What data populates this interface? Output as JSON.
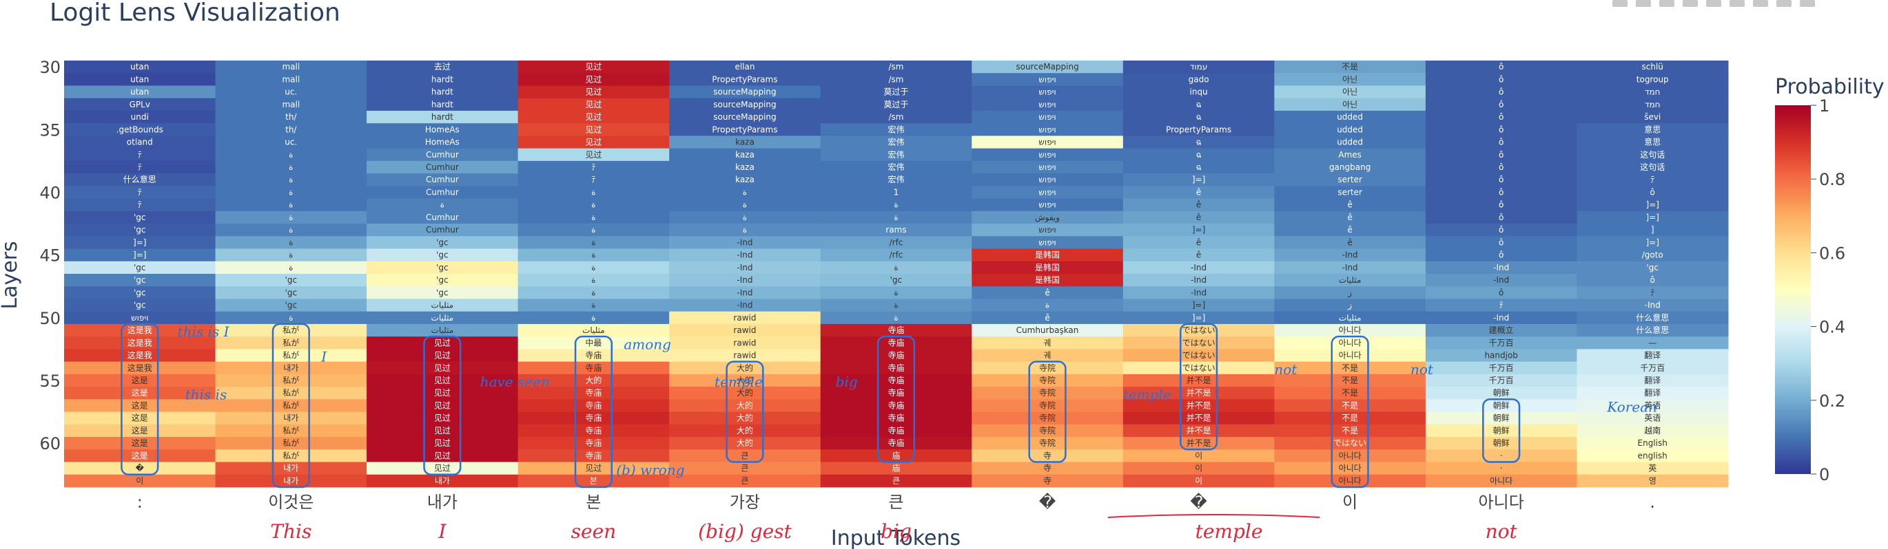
{
  "chart_data": {
    "type": "heatmap",
    "title": "Logit Lens Visualization",
    "xlabel": "Input Tokens",
    "ylabel": "Layers",
    "colorbar_title": "Probability",
    "colorbar_ticks": [
      "0",
      "0.2",
      "0.4",
      "0.6",
      "0.8",
      "1"
    ],
    "colorscale": "RdYlBu_r",
    "zmin": 0,
    "zmax": 1,
    "y_ticks": [
      "30",
      "35",
      "40",
      "45",
      "50",
      "55",
      "60"
    ],
    "layers": [
      30,
      31,
      32,
      33,
      34,
      35,
      36,
      37,
      38,
      39,
      40,
      41,
      42,
      43,
      44,
      45,
      46,
      47,
      48,
      49,
      50,
      51,
      52,
      53,
      54,
      55,
      56,
      57,
      58,
      59,
      60,
      61,
      62,
      63
    ],
    "tokens": [
      ":",
      "이것은",
      "내가",
      "본",
      "가장",
      "큰",
      "�",
      "�",
      "이",
      "아니다",
      "."
    ],
    "columns": [
      {
        "labels": [
          "utan",
          "utan",
          "utan",
          "GPLv",
          "undi",
          ".getBounds",
          "otland",
          "ﾃ",
          "ﾃ",
          "什么意思",
          "ﾃ",
          "ﾃ",
          "'gc",
          "'gc",
          "]=]",
          "]=]",
          "'gc",
          "'gc",
          "'gc",
          "'gc",
          "ויפוש",
          "这是我",
          "这是我",
          "这是我",
          "这是我",
          "这是",
          "这是",
          "这是",
          "这是",
          "这是",
          "这是",
          "这是",
          "�",
          "이"
        ],
        "probs": [
          0.04,
          0.03,
          0.15,
          0.05,
          0.04,
          0.06,
          0.05,
          0.05,
          0.04,
          0.06,
          0.08,
          0.07,
          0.05,
          0.06,
          0.07,
          0.1,
          0.35,
          0.12,
          0.08,
          0.07,
          0.06,
          0.84,
          0.86,
          0.88,
          0.74,
          0.8,
          0.82,
          0.72,
          0.6,
          0.64,
          0.78,
          0.82,
          0.58,
          0.78
        ]
      },
      {
        "labels": [
          "mall",
          "mall",
          "uc.",
          "mall",
          "th/",
          "th/",
          "uc.",
          "ة",
          "ة",
          "ة",
          "ة",
          "ة",
          "ة",
          "ة",
          "ة",
          "ة",
          "ة",
          "'gc",
          "'gc",
          "'gc",
          "ة",
          "私が",
          "私が",
          "私が",
          "내가",
          "私が",
          "私が",
          "私が",
          "내가",
          "私が",
          "私が",
          "私が",
          "내가",
          "내가"
        ],
        "probs": [
          0.1,
          0.1,
          0.1,
          0.1,
          0.1,
          0.1,
          0.1,
          0.1,
          0.1,
          0.1,
          0.1,
          0.1,
          0.15,
          0.12,
          0.18,
          0.26,
          0.45,
          0.3,
          0.26,
          0.2,
          0.12,
          0.56,
          0.62,
          0.52,
          0.7,
          0.68,
          0.64,
          0.72,
          0.66,
          0.7,
          0.74,
          0.62,
          0.84,
          0.86
        ]
      },
      {
        "labels": [
          "去过",
          "hardt",
          "hardt",
          "hardt",
          "hardt",
          "HomeAs",
          "HomeAs",
          "Cumhur",
          "Cumhur",
          "Cumhur",
          "Cumhur",
          "ة",
          "Cumhur",
          "Cumhur",
          "'gc",
          "'gc",
          "'gc",
          "'gc",
          "'gc",
          "مثليات",
          "مثليات",
          "مثليات",
          "见过",
          "见过",
          "见过",
          "见过",
          "见过",
          "见过",
          "见过",
          "见过",
          "见过",
          "见过",
          "见过",
          "내가"
        ],
        "probs": [
          0.06,
          0.06,
          0.06,
          0.06,
          0.3,
          0.1,
          0.1,
          0.12,
          0.18,
          0.12,
          0.1,
          0.12,
          0.12,
          0.18,
          0.25,
          0.35,
          0.55,
          0.52,
          0.45,
          0.3,
          0.12,
          0.18,
          0.97,
          0.97,
          0.96,
          0.97,
          0.97,
          0.97,
          0.97,
          0.97,
          0.97,
          0.97,
          0.46,
          0.9
        ]
      },
      {
        "labels": [
          "见过",
          "见过",
          "见过",
          "见过",
          "见过",
          "见过",
          "见过",
          "见过",
          "ﾃ",
          "ﾃ",
          "ة",
          "ة",
          "ة",
          "ة",
          "ة",
          "ة",
          "ة",
          "ة",
          "ة",
          "ة",
          "ة",
          "مثليات",
          "中最",
          "寺庙",
          "寺庙",
          "大的",
          "寺庙",
          "寺庙",
          "寺庙",
          "寺庙",
          "寺庙",
          "寺庙",
          "见过",
          "본"
        ],
        "probs": [
          0.95,
          0.96,
          0.92,
          0.88,
          0.88,
          0.86,
          0.88,
          0.3,
          0.1,
          0.1,
          0.1,
          0.1,
          0.1,
          0.12,
          0.16,
          0.22,
          0.3,
          0.28,
          0.25,
          0.18,
          0.12,
          0.52,
          0.48,
          0.55,
          0.8,
          0.86,
          0.88,
          0.9,
          0.92,
          0.9,
          0.88,
          0.86,
          0.7,
          0.84
        ]
      },
      {
        "labels": [
          "ellan",
          "PropertyParams",
          "sourceMapping",
          "sourceMapping",
          "sourceMapping",
          "PropertyParams",
          "kaza",
          "kaza",
          "kaza",
          "kaza",
          "ة",
          "ة",
          "ة",
          "ة",
          "-Ind",
          "-Ind",
          "-Ind",
          "-Ind",
          "-Ind",
          "-Ind",
          "rawid",
          "rawid",
          "rawid",
          "rawid",
          "大的",
          "大的",
          "大的",
          "大的",
          "大的",
          "大的",
          "大的",
          "큰",
          "큰",
          "큰"
        ],
        "probs": [
          0.06,
          0.06,
          0.1,
          0.06,
          0.06,
          0.06,
          0.16,
          0.1,
          0.1,
          0.1,
          0.1,
          0.1,
          0.12,
          0.14,
          0.18,
          0.24,
          0.26,
          0.25,
          0.22,
          0.18,
          0.56,
          0.6,
          0.58,
          0.55,
          0.64,
          0.72,
          0.8,
          0.82,
          0.86,
          0.88,
          0.84,
          0.78,
          0.76,
          0.8
        ]
      },
      {
        "labels": [
          "/sm",
          "/sm",
          "莫过于",
          "莫过于",
          "/sm",
          "宏伟",
          "宏伟",
          "宏伟",
          "宏伟",
          "宏伟",
          "1",
          "ة",
          "ة",
          "rams",
          "/rfc",
          "/rfc",
          "ة",
          "'gc",
          "ة",
          "ة",
          "ة",
          "寺庙",
          "寺庙",
          "寺庙",
          "寺庙",
          "寺庙",
          "寺庙",
          "寺庙",
          "寺庙",
          "寺庙",
          "寺庙",
          "庙",
          "庙",
          "큰"
        ],
        "probs": [
          0.06,
          0.06,
          0.06,
          0.06,
          0.06,
          0.1,
          0.12,
          0.12,
          0.1,
          0.1,
          0.1,
          0.1,
          0.12,
          0.14,
          0.18,
          0.2,
          0.25,
          0.24,
          0.2,
          0.16,
          0.14,
          0.94,
          0.96,
          0.96,
          0.96,
          0.97,
          0.97,
          0.97,
          0.97,
          0.97,
          0.96,
          0.9,
          0.84,
          0.92
        ]
      },
      {
        "labels": [
          "sourceMapping",
          "ויפוש",
          "ויפוש",
          "ויפוש",
          "ויפוש",
          "ויפוש",
          "ויפוש",
          "ויפוש",
          "ויפוש",
          "ויפוש",
          "ויפוש",
          "ויפוש",
          "ويفوش",
          "ויפוש",
          "ויפוש",
          "是韩国",
          "是韩国",
          "是韩国",
          "ê",
          "ة",
          "ê",
          "Cumhurbaşkan",
          "궤",
          "궤",
          "寺院",
          "寺院",
          "寺院",
          "寺院",
          "寺院",
          "寺院",
          "寺院",
          "寺",
          "寺",
          "寺"
        ],
        "probs": [
          0.25,
          0.1,
          0.08,
          0.08,
          0.1,
          0.1,
          0.48,
          0.1,
          0.12,
          0.1,
          0.12,
          0.1,
          0.16,
          0.2,
          0.12,
          0.9,
          0.94,
          0.92,
          0.12,
          0.14,
          0.12,
          0.42,
          0.6,
          0.65,
          0.62,
          0.7,
          0.74,
          0.76,
          0.78,
          0.74,
          0.7,
          0.64,
          0.72,
          0.76
        ]
      },
      {
        "labels": [
          "עמוד",
          "gado",
          "inqu",
          "ฉ",
          "ฉ",
          "PropertyParams",
          "ฉ",
          "ฉ",
          "ฉ",
          "]=]",
          "ê",
          "ê",
          "ê",
          "]=]",
          "ê",
          "ê",
          "-Ind",
          "-Ind",
          "-Ind",
          "]=]",
          "]=]",
          "ではない",
          "ではない",
          "ではない",
          "ではない",
          "并不是",
          "并不是",
          "并不是",
          "并不是",
          "并不是",
          "并不是",
          "이",
          "이",
          "이"
        ],
        "probs": [
          0.05,
          0.06,
          0.06,
          0.06,
          0.06,
          0.06,
          0.08,
          0.1,
          0.1,
          0.12,
          0.14,
          0.16,
          0.18,
          0.2,
          0.22,
          0.24,
          0.28,
          0.25,
          0.2,
          0.16,
          0.12,
          0.62,
          0.66,
          0.7,
          0.56,
          0.8,
          0.86,
          0.9,
          0.92,
          0.86,
          0.76,
          0.7,
          0.78,
          0.84
        ]
      },
      {
        "labels": [
          "不是",
          "아닌",
          "아닌",
          "아닌",
          "udded",
          "udded",
          "udded",
          "Ames",
          "gangbang",
          "serter",
          "serter",
          "ê",
          "ê",
          "ê",
          "ê",
          "-Ind",
          "-Ind",
          "مثليات",
          "ز",
          "ز",
          "مثليات",
          "아니다",
          "아니다",
          "아니다",
          "不是",
          "不是",
          "不是",
          "不是",
          "不是",
          "不是",
          "ではない",
          "아니다",
          "아니다",
          "아니다"
        ],
        "probs": [
          0.18,
          0.2,
          0.28,
          0.25,
          0.1,
          0.1,
          0.1,
          0.12,
          0.12,
          0.12,
          0.1,
          0.1,
          0.12,
          0.12,
          0.16,
          0.18,
          0.22,
          0.2,
          0.16,
          0.12,
          0.1,
          0.44,
          0.5,
          0.52,
          0.7,
          0.78,
          0.8,
          0.84,
          0.88,
          0.86,
          0.82,
          0.76,
          0.72,
          0.8
        ]
      },
      {
        "labels": [
          "ô",
          "ô",
          "ô",
          "ô",
          "ô",
          "ô",
          "ô",
          "ô",
          "ô",
          "ô",
          "ô",
          "ô",
          "ô",
          "ô",
          "ô",
          "ô",
          "-Ind",
          "-Ind",
          "ô",
          "ﾃ",
          "-Ind",
          "建概立",
          "千万百",
          "handjob",
          "千万百",
          "千万百",
          "朝鲜",
          "朝鲜",
          "朝鲜",
          "朝鲜",
          "朝鲜",
          "·",
          "·",
          "아니다"
        ],
        "probs": [
          0.06,
          0.06,
          0.06,
          0.06,
          0.06,
          0.06,
          0.06,
          0.06,
          0.06,
          0.06,
          0.06,
          0.06,
          0.06,
          0.08,
          0.1,
          0.1,
          0.14,
          0.16,
          0.18,
          0.14,
          0.1,
          0.16,
          0.2,
          0.22,
          0.3,
          0.34,
          0.36,
          0.4,
          0.45,
          0.55,
          0.62,
          0.66,
          0.7,
          0.74
        ]
      },
      {
        "labels": [
          "schlü",
          "togroup",
          "חמד",
          "חמד",
          "ševi",
          "意思",
          "意思",
          "这句话",
          "这句话",
          "ﾃ",
          "ô",
          "]=]",
          "]=]",
          "]",
          "]=]",
          "/goto",
          "'gc",
          "ô",
          "ﾃ",
          "-Ind",
          "什么意思",
          "什么意思",
          "—",
          "翻译",
          "千万百",
          "翻译",
          "翻译",
          "英语",
          "英语",
          "越南",
          "English",
          "english",
          "英",
          "영"
        ],
        "probs": [
          0.06,
          0.06,
          0.06,
          0.06,
          0.06,
          0.08,
          0.08,
          0.08,
          0.08,
          0.08,
          0.08,
          0.08,
          0.1,
          0.1,
          0.12,
          0.12,
          0.14,
          0.14,
          0.16,
          0.14,
          0.12,
          0.14,
          0.2,
          0.36,
          0.36,
          0.38,
          0.4,
          0.42,
          0.44,
          0.46,
          0.48,
          0.5,
          0.56,
          0.66
        ]
      }
    ],
    "annotations_red": [
      "This",
      "I",
      "seen",
      "(big) gest",
      "big",
      "temple",
      "not"
    ],
    "annotations_blue": [
      "this is I",
      "I",
      "have seen",
      "among",
      "temple",
      "big",
      "temple",
      "not",
      "not",
      "Korean",
      "this is",
      "(b) wrong"
    ]
  },
  "colors": {
    "title": "#2a3f5f",
    "handwriting_red": "#e0283c",
    "handwriting_blue": "#2a6fd6"
  },
  "toolbar_icons": [
    "camera-icon",
    "zoom-icon",
    "pan-icon",
    "box-select-icon",
    "lasso-icon",
    "zoom-in-icon",
    "zoom-out-icon",
    "autoscale-icon",
    "reset-icon"
  ]
}
